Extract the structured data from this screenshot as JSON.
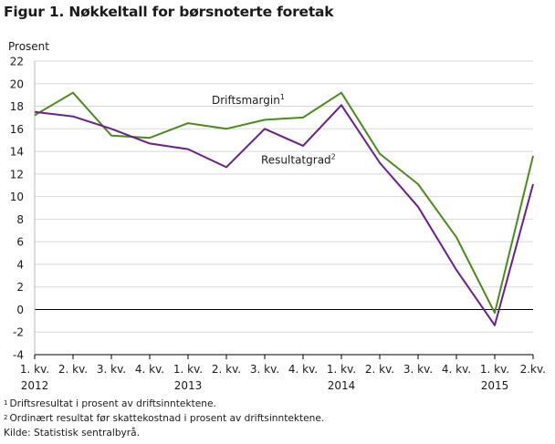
{
  "title": "Figur 1. Nøkkeltall for børsnoterte foretak",
  "chart_data": {
    "type": "line",
    "ylabel": "Prosent",
    "xlabel": "",
    "ylim": [
      -4,
      22
    ],
    "yticks": [
      -4,
      -2,
      0,
      2,
      4,
      6,
      8,
      10,
      12,
      14,
      16,
      18,
      20,
      22
    ],
    "grid": true,
    "categories": [
      "1. kv.",
      "2. kv.",
      "3. kv.",
      "4. kv.",
      "1. kv.",
      "2. kv.",
      "3. kv.",
      "4. kv.",
      "1. kv.",
      "2. kv.",
      "3. kv.",
      "4. kv.",
      "1. kv.",
      "2.kv."
    ],
    "years": [
      {
        "label": "2012",
        "index": 0
      },
      {
        "label": "2013",
        "index": 4
      },
      {
        "label": "2014",
        "index": 8
      },
      {
        "label": "2015",
        "index": 12
      }
    ],
    "series": [
      {
        "name": "Driftsmargin",
        "sup": "1",
        "color": "#4a8c1c",
        "values": [
          17.2,
          19.2,
          15.4,
          15.2,
          16.5,
          16.0,
          16.8,
          17.0,
          19.2,
          13.8,
          11.1,
          6.4,
          -0.3,
          13.6
        ]
      },
      {
        "name": "Resultatgrad",
        "sup": "2",
        "color": "#6b1e8c",
        "values": [
          17.5,
          17.1,
          16.0,
          14.7,
          14.2,
          12.6,
          16.0,
          14.5,
          18.1,
          13.0,
          9.1,
          3.5,
          -1.4,
          11.1
        ]
      }
    ]
  },
  "footnotes": [
    {
      "sup": "1",
      "text": "Driftsresultat i prosent av driftsinntektene."
    },
    {
      "sup": "2",
      "text": "Ordinært resultat før skattekostnad i prosent av driftsinntektene."
    },
    {
      "sup": "",
      "text": "Kilde: Statistisk sentralbyrå."
    }
  ]
}
